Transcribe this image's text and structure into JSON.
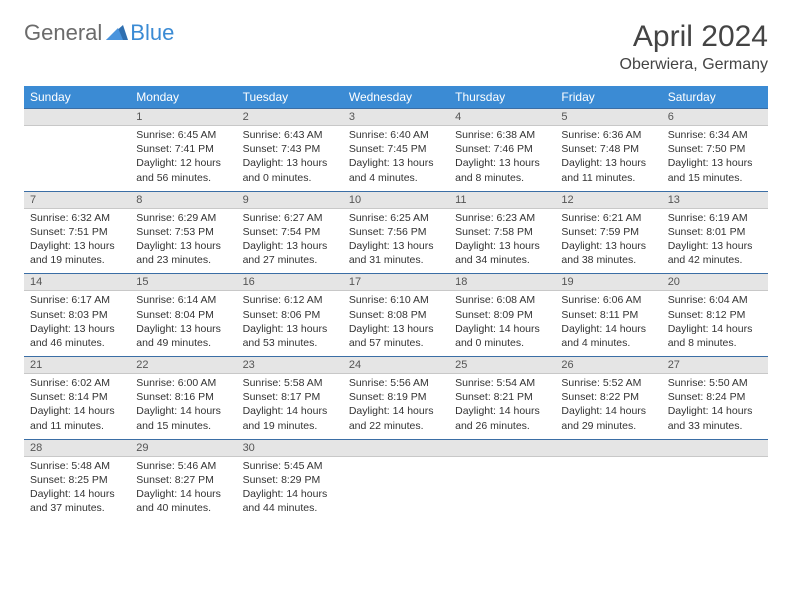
{
  "logo": {
    "word1": "General",
    "word2": "Blue"
  },
  "header": {
    "title": "April 2024",
    "location": "Oberwiera, Germany"
  },
  "style": {
    "header_bg": "#3b8bd4",
    "header_text": "#ffffff",
    "daynum_bg": "#e5e5e5",
    "daynum_border_top": "#3b6ea5",
    "body_font_size": 10.5,
    "page_bg": "#ffffff"
  },
  "weekdays": [
    "Sunday",
    "Monday",
    "Tuesday",
    "Wednesday",
    "Thursday",
    "Friday",
    "Saturday"
  ],
  "weeks": [
    {
      "nums": [
        "",
        "1",
        "2",
        "3",
        "4",
        "5",
        "6"
      ],
      "cells": [
        null,
        {
          "sr": "6:45 AM",
          "ss": "7:41 PM",
          "dl": "12 hours and 56 minutes."
        },
        {
          "sr": "6:43 AM",
          "ss": "7:43 PM",
          "dl": "13 hours and 0 minutes."
        },
        {
          "sr": "6:40 AM",
          "ss": "7:45 PM",
          "dl": "13 hours and 4 minutes."
        },
        {
          "sr": "6:38 AM",
          "ss": "7:46 PM",
          "dl": "13 hours and 8 minutes."
        },
        {
          "sr": "6:36 AM",
          "ss": "7:48 PM",
          "dl": "13 hours and 11 minutes."
        },
        {
          "sr": "6:34 AM",
          "ss": "7:50 PM",
          "dl": "13 hours and 15 minutes."
        }
      ]
    },
    {
      "nums": [
        "7",
        "8",
        "9",
        "10",
        "11",
        "12",
        "13"
      ],
      "cells": [
        {
          "sr": "6:32 AM",
          "ss": "7:51 PM",
          "dl": "13 hours and 19 minutes."
        },
        {
          "sr": "6:29 AM",
          "ss": "7:53 PM",
          "dl": "13 hours and 23 minutes."
        },
        {
          "sr": "6:27 AM",
          "ss": "7:54 PM",
          "dl": "13 hours and 27 minutes."
        },
        {
          "sr": "6:25 AM",
          "ss": "7:56 PM",
          "dl": "13 hours and 31 minutes."
        },
        {
          "sr": "6:23 AM",
          "ss": "7:58 PM",
          "dl": "13 hours and 34 minutes."
        },
        {
          "sr": "6:21 AM",
          "ss": "7:59 PM",
          "dl": "13 hours and 38 minutes."
        },
        {
          "sr": "6:19 AM",
          "ss": "8:01 PM",
          "dl": "13 hours and 42 minutes."
        }
      ]
    },
    {
      "nums": [
        "14",
        "15",
        "16",
        "17",
        "18",
        "19",
        "20"
      ],
      "cells": [
        {
          "sr": "6:17 AM",
          "ss": "8:03 PM",
          "dl": "13 hours and 46 minutes."
        },
        {
          "sr": "6:14 AM",
          "ss": "8:04 PM",
          "dl": "13 hours and 49 minutes."
        },
        {
          "sr": "6:12 AM",
          "ss": "8:06 PM",
          "dl": "13 hours and 53 minutes."
        },
        {
          "sr": "6:10 AM",
          "ss": "8:08 PM",
          "dl": "13 hours and 57 minutes."
        },
        {
          "sr": "6:08 AM",
          "ss": "8:09 PM",
          "dl": "14 hours and 0 minutes."
        },
        {
          "sr": "6:06 AM",
          "ss": "8:11 PM",
          "dl": "14 hours and 4 minutes."
        },
        {
          "sr": "6:04 AM",
          "ss": "8:12 PM",
          "dl": "14 hours and 8 minutes."
        }
      ]
    },
    {
      "nums": [
        "21",
        "22",
        "23",
        "24",
        "25",
        "26",
        "27"
      ],
      "cells": [
        {
          "sr": "6:02 AM",
          "ss": "8:14 PM",
          "dl": "14 hours and 11 minutes."
        },
        {
          "sr": "6:00 AM",
          "ss": "8:16 PM",
          "dl": "14 hours and 15 minutes."
        },
        {
          "sr": "5:58 AM",
          "ss": "8:17 PM",
          "dl": "14 hours and 19 minutes."
        },
        {
          "sr": "5:56 AM",
          "ss": "8:19 PM",
          "dl": "14 hours and 22 minutes."
        },
        {
          "sr": "5:54 AM",
          "ss": "8:21 PM",
          "dl": "14 hours and 26 minutes."
        },
        {
          "sr": "5:52 AM",
          "ss": "8:22 PM",
          "dl": "14 hours and 29 minutes."
        },
        {
          "sr": "5:50 AM",
          "ss": "8:24 PM",
          "dl": "14 hours and 33 minutes."
        }
      ]
    },
    {
      "nums": [
        "28",
        "29",
        "30",
        "",
        "",
        "",
        ""
      ],
      "cells": [
        {
          "sr": "5:48 AM",
          "ss": "8:25 PM",
          "dl": "14 hours and 37 minutes."
        },
        {
          "sr": "5:46 AM",
          "ss": "8:27 PM",
          "dl": "14 hours and 40 minutes."
        },
        {
          "sr": "5:45 AM",
          "ss": "8:29 PM",
          "dl": "14 hours and 44 minutes."
        },
        null,
        null,
        null,
        null
      ]
    }
  ],
  "labels": {
    "sunrise": "Sunrise: ",
    "sunset": "Sunset: ",
    "daylight": "Daylight: "
  }
}
